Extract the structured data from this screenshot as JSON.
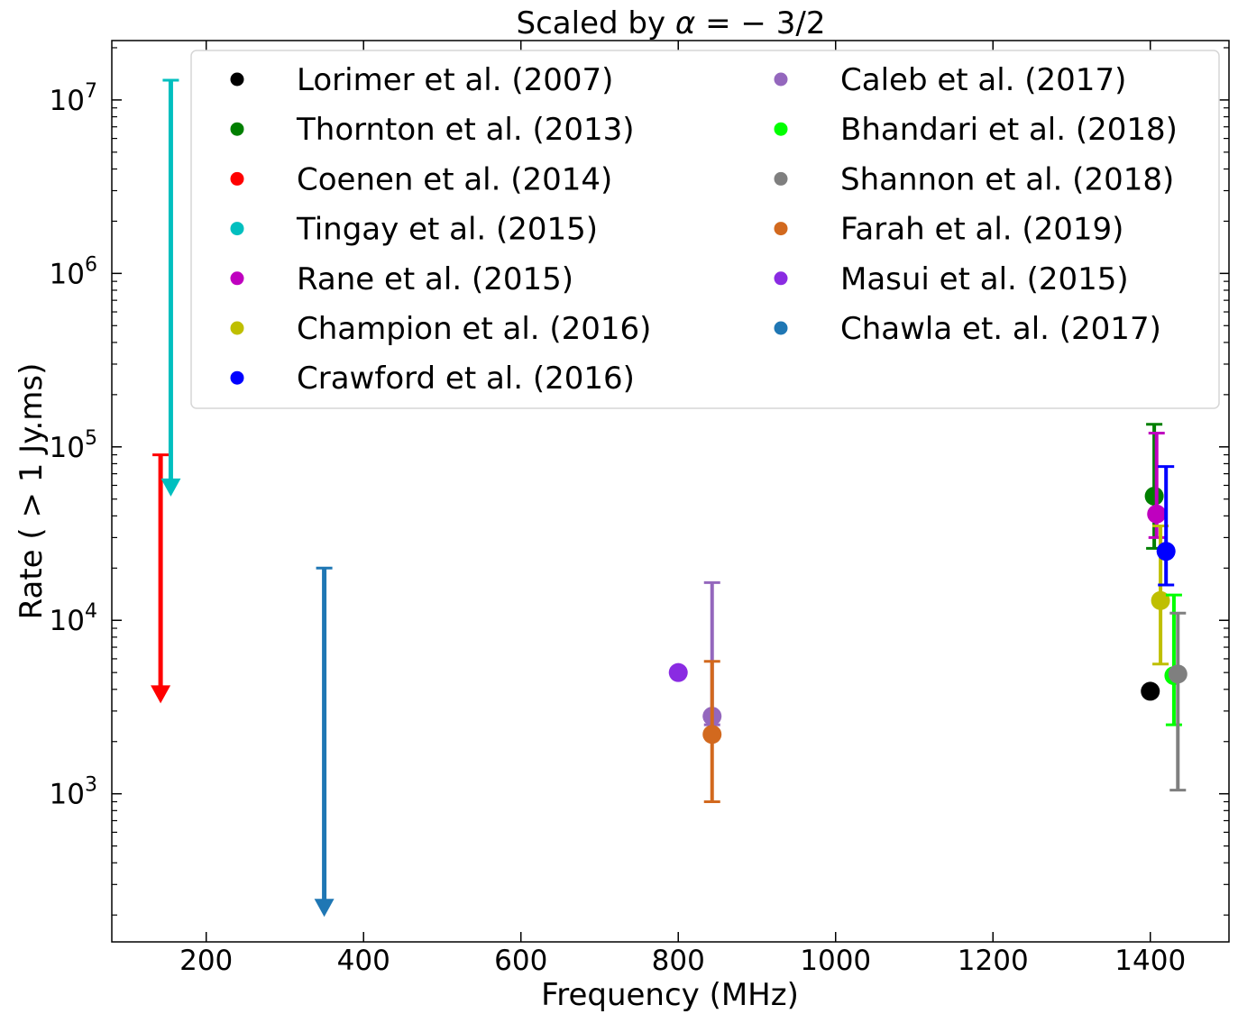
{
  "chart_data": {
    "type": "scatter",
    "title_prefix": "Scaled by ",
    "title_symbol": "α",
    "title_suffix": " = − 3/2",
    "xlabel": "Frequency (MHz)",
    "ylabel": "Rate ( > 1 Jy.ms)",
    "xlim": [
      80,
      1500
    ],
    "ylim": [
      140,
      22000000
    ],
    "yscale": "log",
    "x_ticks": [
      200,
      400,
      600,
      800,
      1000,
      1200,
      1400
    ],
    "y_ticks": [
      {
        "value": 1000,
        "base": "10",
        "exp": "3"
      },
      {
        "value": 10000,
        "base": "10",
        "exp": "4"
      },
      {
        "value": 100000,
        "base": "10",
        "exp": "5"
      },
      {
        "value": 1000000,
        "base": "10",
        "exp": "6"
      },
      {
        "value": 10000000,
        "base": "10",
        "exp": "7"
      }
    ],
    "grid": false,
    "legend_position": "upper-right",
    "series": [
      {
        "name": "Lorimer et al. (2007)",
        "color": "#000000",
        "x": 1400,
        "y": 3900
      },
      {
        "name": "Thornton et al. (2013)",
        "color": "#007f00",
        "x": 1405,
        "y": 52000,
        "err_low": 26000,
        "err_high": 135000
      },
      {
        "name": "Coenen et al. (2014)",
        "color": "#ff0000",
        "x": 142,
        "y": 90000,
        "upper_limit": true,
        "arrow_to": 3400
      },
      {
        "name": "Tingay et al. (2015)",
        "color": "#00bfbf",
        "x": 155,
        "y": 13000000,
        "upper_limit": true,
        "arrow_to": 53000
      },
      {
        "name": "Rane et al. (2015)",
        "color": "#bf00bf",
        "x": 1408,
        "y": 41000,
        "err_low": 30000,
        "err_high": 120000
      },
      {
        "name": "Champion et al. (2016)",
        "color": "#bfbf00",
        "x": 1413,
        "y": 13000,
        "err_low": 5600,
        "err_high": 35000
      },
      {
        "name": "Crawford et al. (2016)",
        "color": "#0000ff",
        "x": 1420,
        "y": 25000,
        "err_low": 16000,
        "err_high": 77000
      },
      {
        "name": "Caleb et al. (2017)",
        "color": "#9467bd",
        "x": 843,
        "y": 2800,
        "err_low": 2500,
        "err_high": 16500
      },
      {
        "name": "Bhandari et al. (2018)",
        "color": "#00ff00",
        "x": 1430,
        "y": 4800,
        "err_low": 2500,
        "err_high": 14000
      },
      {
        "name": "Shannon et al. (2018)",
        "color": "#7f7f7f",
        "x": 1435,
        "y": 4900,
        "err_low": 1050,
        "err_high": 11000
      },
      {
        "name": "Farah et al. (2019)",
        "color": "#d2691e",
        "x": 843,
        "y": 2200,
        "err_low": 900,
        "err_high": 5800
      },
      {
        "name": "Masui et al. (2015)",
        "color": "#8a2be2",
        "x": 800,
        "y": 5000
      },
      {
        "name": "Chawla et. al. (2017)",
        "color": "#1f77b4",
        "x": 350,
        "y": 20000,
        "upper_limit": true,
        "arrow_to": 200
      }
    ]
  }
}
